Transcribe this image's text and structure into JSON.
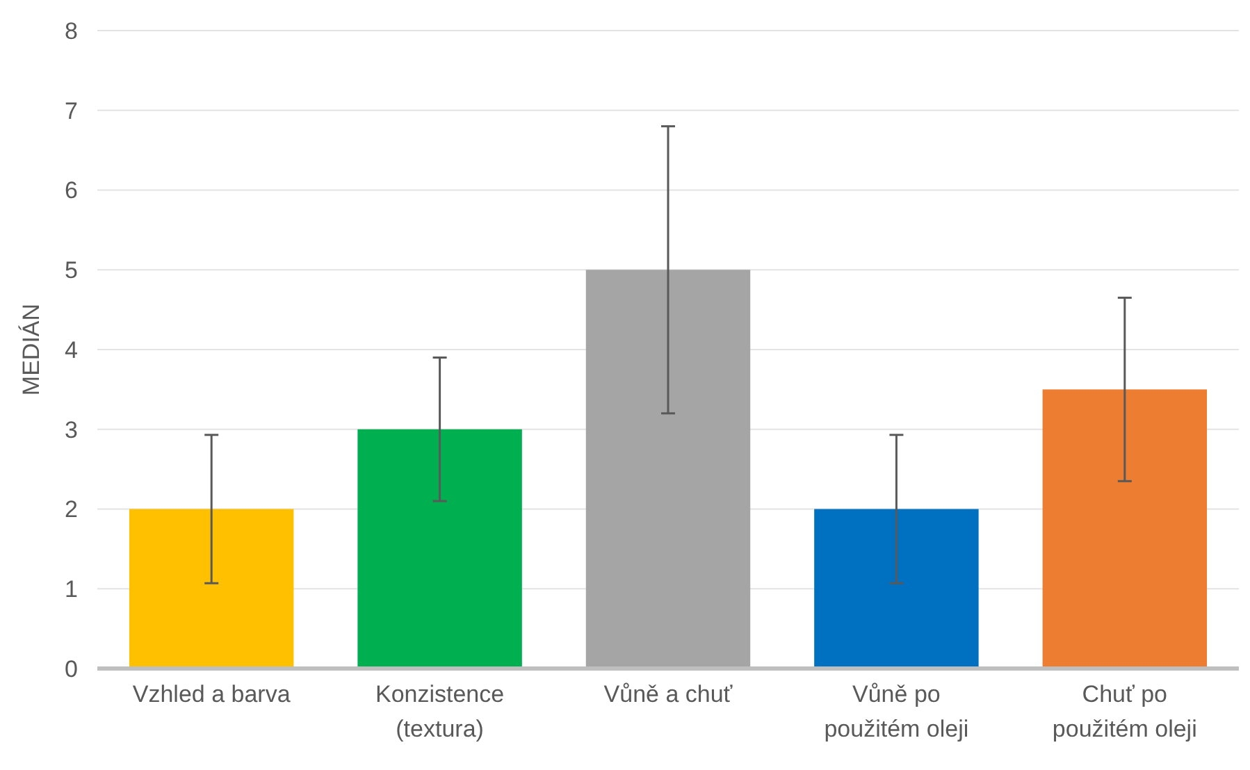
{
  "chart_data": {
    "type": "bar",
    "ylabel": "MEDIÁN",
    "categories": [
      "Vzhled a barva",
      "Konzistence (textura)",
      "Vůně a chuť",
      "Vůně po použitém oleji",
      "Chuť po použitém oleji"
    ],
    "values": [
      2,
      3,
      5,
      2,
      3.5
    ],
    "colors": [
      "#ffc000",
      "#00b050",
      "#a5a5a5",
      "#0070c0",
      "#ed7d31"
    ],
    "errors": [
      0.93,
      0.9,
      1.8,
      0.93,
      1.15
    ],
    "ylim": [
      0,
      8
    ],
    "yticks": [
      0,
      1,
      2,
      3,
      4,
      5,
      6,
      7,
      8
    ],
    "grid": "y"
  }
}
